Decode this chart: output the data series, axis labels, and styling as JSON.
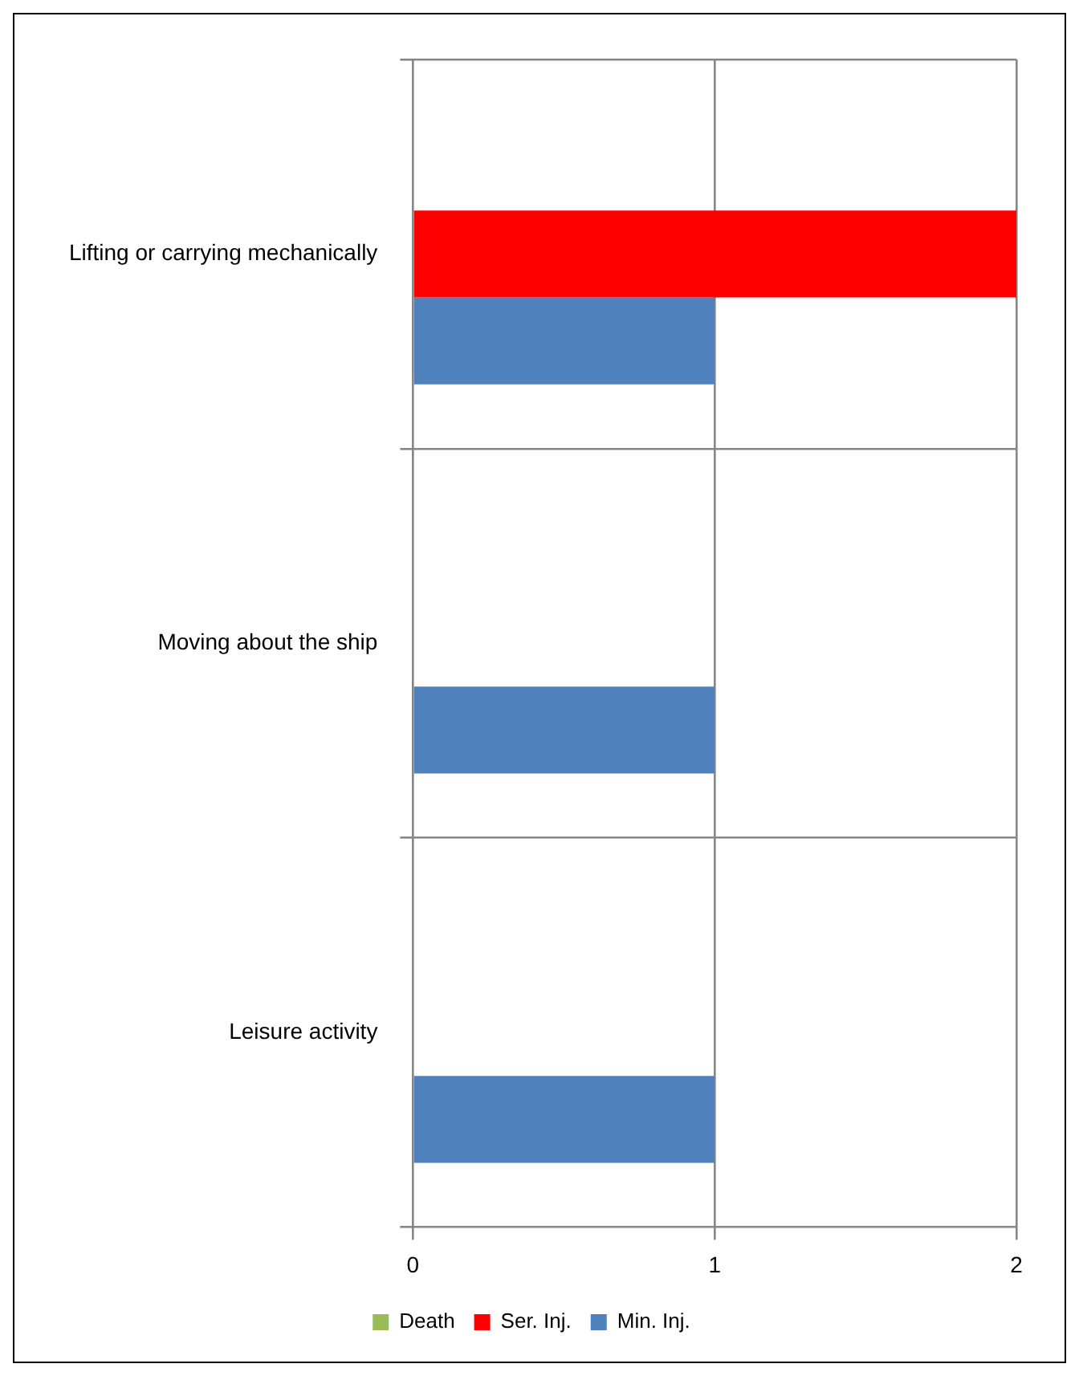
{
  "chart_data": {
    "type": "bar",
    "orientation": "horizontal",
    "categories": [
      "Lifting or carrying mechanically",
      "Moving about the ship",
      "Leisure activity"
    ],
    "series": [
      {
        "name": "Death",
        "color": "#9bbb59",
        "values": [
          0,
          0,
          0
        ]
      },
      {
        "name": "Ser. Inj.",
        "color": "#ff0000",
        "values": [
          2,
          0,
          0
        ]
      },
      {
        "name": "Min. Inj.",
        "color": "#4f81bd",
        "values": [
          1,
          1,
          1
        ]
      }
    ],
    "xlim": [
      0,
      2
    ],
    "xticks": [
      0,
      1,
      2
    ],
    "grid": true,
    "legend": "bottom"
  }
}
